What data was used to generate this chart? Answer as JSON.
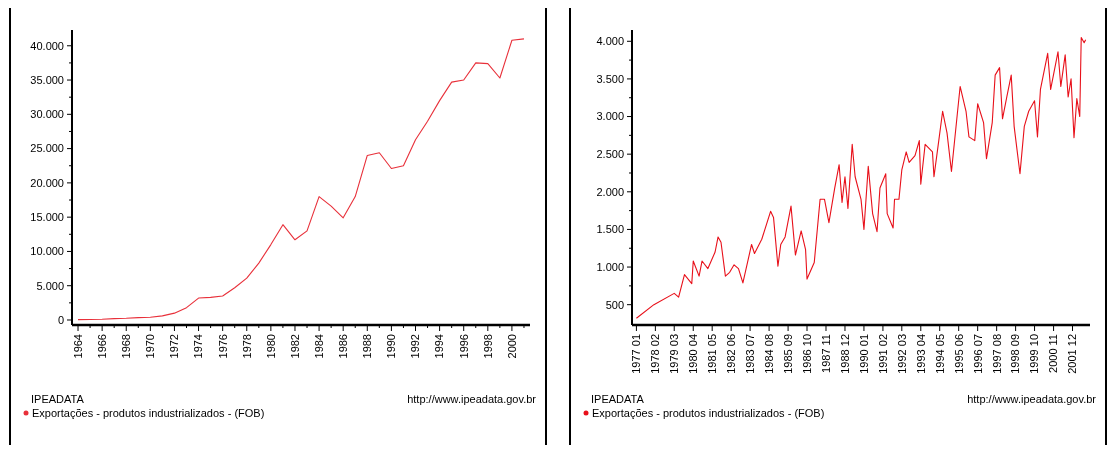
{
  "chart_data": [
    {
      "type": "line",
      "x": [
        1964,
        1965,
        1966,
        1967,
        1968,
        1969,
        1970,
        1971,
        1972,
        1973,
        1974,
        1975,
        1976,
        1977,
        1978,
        1979,
        1980,
        1981,
        1982,
        1983,
        1984,
        1985,
        1986,
        1987,
        1988,
        1989,
        1990,
        1991,
        1992,
        1993,
        1994,
        1995,
        1996,
        1997,
        1998,
        1999,
        2000,
        2001
      ],
      "series": [
        {
          "name": "Exportações - produtos industrializados - (FOB)",
          "color": "#e8303a",
          "values": [
            50,
            80,
            100,
            200,
            250,
            350,
            400,
            600,
            1000,
            1800,
            3200,
            3300,
            3500,
            4700,
            6100,
            8300,
            11000,
            13900,
            11700,
            13000,
            18000,
            16600,
            14900,
            18000,
            24000,
            24400,
            22100,
            22500,
            26300,
            29000,
            32000,
            34700,
            35000,
            37500,
            37400,
            35300,
            40800,
            41000
          ]
        }
      ],
      "xlim": [
        1963.5,
        2001.5
      ],
      "xticks": [
        1964,
        {
          "value": 1965,
          "label": null
        },
        1966,
        {
          "value": 1967,
          "label": null
        },
        1968,
        {
          "value": 1969,
          "label": null
        },
        1970,
        {
          "value": 1971,
          "label": null
        },
        1972,
        {
          "value": 1973,
          "label": null
        },
        1974,
        {
          "value": 1975,
          "label": null
        },
        1976,
        {
          "value": 1977,
          "label": null
        },
        1978,
        {
          "value": 1979,
          "label": null
        },
        1980,
        {
          "value": 1981,
          "label": null
        },
        1982,
        {
          "value": 1983,
          "label": null
        },
        1984,
        {
          "value": 1985,
          "label": null
        },
        1986,
        {
          "value": 1987,
          "label": null
        },
        1988,
        {
          "value": 1989,
          "label": null
        },
        1990,
        {
          "value": 1991,
          "label": null
        },
        1992,
        {
          "value": 1993,
          "label": null
        },
        1994,
        {
          "value": 1995,
          "label": null
        },
        1996,
        {
          "value": 1997,
          "label": null
        },
        1998,
        {
          "value": 1999,
          "label": null
        },
        2000,
        {
          "value": 2001,
          "label": null
        }
      ],
      "ylim": [
        -730,
        42300
      ],
      "yticks": [
        0,
        {
          "value": 2500,
          "label": null
        },
        {
          "value": 5000,
          "label": "5.000"
        },
        {
          "value": 7500,
          "label": null
        },
        {
          "value": 10000,
          "label": "10.000"
        },
        {
          "value": 12500,
          "label": null
        },
        {
          "value": 15000,
          "label": "15.000"
        },
        {
          "value": 17500,
          "label": null
        },
        {
          "value": 20000,
          "label": "20.000"
        },
        {
          "value": 22500,
          "label": null
        },
        {
          "value": 25000,
          "label": "25.000"
        },
        {
          "value": 27500,
          "label": null
        },
        {
          "value": 30000,
          "label": "30.000"
        },
        {
          "value": 32500,
          "label": null
        },
        {
          "value": 35000,
          "label": "35.000"
        },
        {
          "value": 37500,
          "label": null
        },
        {
          "value": 40000,
          "label": "40.000"
        }
      ],
      "grid": false,
      "legend": "bottom left",
      "marker": "none",
      "line_style": "solid",
      "annotations": [
        "IPEADATA",
        "http://www.ipeadata.gov.br"
      ]
    },
    {
      "type": "line",
      "x": [
        "1977-01",
        "1978-01",
        "1979-03",
        "1979-06",
        "1979-10",
        "1980-03",
        "1980-04",
        "1980-08",
        "1980-10",
        "1981-02",
        "1981-07",
        "1981-09",
        "1981-11",
        "1982-02",
        "1982-05",
        "1982-08",
        "1982-11",
        "1983-02",
        "1983-08",
        "1983-10",
        "1984-03",
        "1984-09",
        "1984-11",
        "1985-02",
        "1985-04",
        "1985-07",
        "1985-11",
        "1986-02",
        "1986-06",
        "1986-09",
        "1986-10",
        "1987-03",
        "1987-07",
        "1987-10",
        "1988-01",
        "1988-05",
        "1988-08",
        "1988-10",
        "1988-12",
        "1989-02",
        "1989-05",
        "1989-07",
        "1989-11",
        "1990-01",
        "1990-04",
        "1990-07",
        "1990-10",
        "1990-12",
        "1991-04",
        "1991-05",
        "1991-09",
        "1991-10",
        "1992-01",
        "1992-03",
        "1992-06",
        "1992-08",
        "1992-12",
        "1993-03",
        "1993-04",
        "1993-07",
        "1993-12",
        "1994-01",
        "1994-04",
        "1994-07",
        "1994-10",
        "1995-01",
        "1995-05",
        "1995-07",
        "1995-11",
        "1996-01",
        "1996-05",
        "1996-07",
        "1996-11",
        "1997-01",
        "1997-05",
        "1997-07",
        "1997-10",
        "1997-12",
        "1998-03",
        "1998-06",
        "1998-08",
        "1998-12",
        "1999-03",
        "1999-06",
        "1999-10",
        "1999-12",
        "2000-02",
        "2000-07",
        "2000-09",
        "2001-02",
        "2001-04",
        "2001-07",
        "2001-09",
        "2001-11",
        "2002-01",
        "2002-03",
        "2002-05",
        "2002-06",
        "2002-08",
        "2002-09"
      ],
      "series": [
        {
          "name": "Exportações - produtos industrializados - (FOB)",
          "color": "#e8101a",
          "values": [
            320,
            500,
            650,
            600,
            900,
            780,
            1080,
            880,
            1080,
            980,
            1200,
            1400,
            1330,
            880,
            930,
            1030,
            980,
            790,
            1300,
            1180,
            1370,
            1740,
            1660,
            1010,
            1300,
            1400,
            1810,
            1160,
            1480,
            1230,
            840,
            1060,
            1900,
            1900,
            1590,
            2050,
            2360,
            1860,
            2200,
            1780,
            2630,
            2200,
            1900,
            1500,
            2340,
            1710,
            1470,
            2050,
            2240,
            1710,
            1520,
            1900,
            1900,
            2290,
            2530,
            2390,
            2480,
            2680,
            2100,
            2630,
            2530,
            2200,
            2630,
            3070,
            2780,
            2270,
            3020,
            3400,
            3070,
            2730,
            2680,
            3170,
            2920,
            2440,
            2920,
            3550,
            3650,
            2970,
            3260,
            3550,
            2870,
            2240,
            2870,
            3070,
            3210,
            2730,
            3360,
            3840,
            3360,
            3860,
            3400,
            3820,
            3260,
            3500,
            2720,
            3240,
            3000,
            4050,
            3980,
            4020
          ]
        }
      ],
      "xlim": [
        "1976-10",
        "2002-12"
      ],
      "xticks": [
        {
          "value": "1977-01",
          "label": "1977 01"
        },
        {
          "value": "1978-02",
          "label": "1978 02"
        },
        {
          "value": "1979-03",
          "label": "1979 03"
        },
        {
          "value": "1980-04",
          "label": "1980 04"
        },
        {
          "value": "1981-05",
          "label": "1981 05"
        },
        {
          "value": "1982-06",
          "label": "1982 06"
        },
        {
          "value": "1983-07",
          "label": "1983 07"
        },
        {
          "value": "1984-08",
          "label": "1984 08"
        },
        {
          "value": "1985-09",
          "label": "1985 09"
        },
        {
          "value": "1986-10",
          "label": "1986 10"
        },
        {
          "value": "1987-11",
          "label": "1987 11"
        },
        {
          "value": "1988-12",
          "label": "1988 12"
        },
        {
          "value": "1990-01",
          "label": "1990 01"
        },
        {
          "value": "1991-02",
          "label": "1991 02"
        },
        {
          "value": "1992-03",
          "label": "1992 03"
        },
        {
          "value": "1993-04",
          "label": "1993 04"
        },
        {
          "value": "1994-05",
          "label": "1994 05"
        },
        {
          "value": "1995-06",
          "label": "1995 06"
        },
        {
          "value": "1996-07",
          "label": "1996 07"
        },
        {
          "value": "1997-08",
          "label": "1997 08"
        },
        {
          "value": "1998-09",
          "label": "1998 09"
        },
        {
          "value": "1999-10",
          "label": "1999 10"
        },
        {
          "value": "2000-11",
          "label": "2000 11"
        },
        {
          "value": "2001-12",
          "label": "2001 12"
        }
      ],
      "ylim": [
        230,
        4150
      ],
      "yticks": [
        {
          "value": 500,
          "label": "500"
        },
        {
          "value": 750,
          "label": null
        },
        {
          "value": 1000,
          "label": "1.000"
        },
        {
          "value": 1250,
          "label": null
        },
        {
          "value": 1500,
          "label": "1.500"
        },
        {
          "value": 1750,
          "label": null
        },
        {
          "value": 2000,
          "label": "2.000"
        },
        {
          "value": 2250,
          "label": null
        },
        {
          "value": 2500,
          "label": "2.500"
        },
        {
          "value": 2750,
          "label": null
        },
        {
          "value": 3000,
          "label": "3.000"
        },
        {
          "value": 3250,
          "label": null
        },
        {
          "value": 3500,
          "label": "3.500"
        },
        {
          "value": 3750,
          "label": null
        },
        {
          "value": 4000,
          "label": "4.000"
        }
      ],
      "grid": false,
      "legend": "bottom left",
      "marker": "none",
      "line_style": "solid",
      "annotations": [
        "IPEADATA",
        "http://www.ipeadata.gov.br"
      ]
    }
  ]
}
